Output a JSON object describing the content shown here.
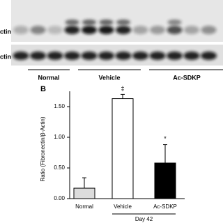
{
  "blot": {
    "row_labels": [
      "ctin",
      "ctin"
    ],
    "groups": [
      "Normal",
      "Vehicle",
      "Ac-SDKP"
    ]
  },
  "panel_label": "B",
  "chart_data": {
    "type": "bar",
    "ylabel": "Ratio (Fibronectin/β-Actin)",
    "xlabel": "Day 42",
    "categories": [
      "Normal",
      "Vehicle",
      "Ac-SDKP"
    ],
    "values": [
      0.17,
      1.63,
      0.58
    ],
    "errors": [
      0.17,
      0.07,
      0.3
    ],
    "colors": [
      "#dcdcdc",
      "#ffffff",
      "#000000"
    ],
    "annotations": [
      {
        "text": "‡",
        "category": "Vehicle"
      },
      {
        "text": "*",
        "category": "Ac-SDKP"
      }
    ],
    "ylim": [
      0,
      1.75
    ],
    "yticks": [
      {
        "value": 0,
        "label": "0.00"
      },
      {
        "value": 0.5,
        "label": "0.50"
      },
      {
        "value": 1,
        "label": "1.00"
      },
      {
        "value": 1.5,
        "label": "1.50"
      }
    ]
  }
}
